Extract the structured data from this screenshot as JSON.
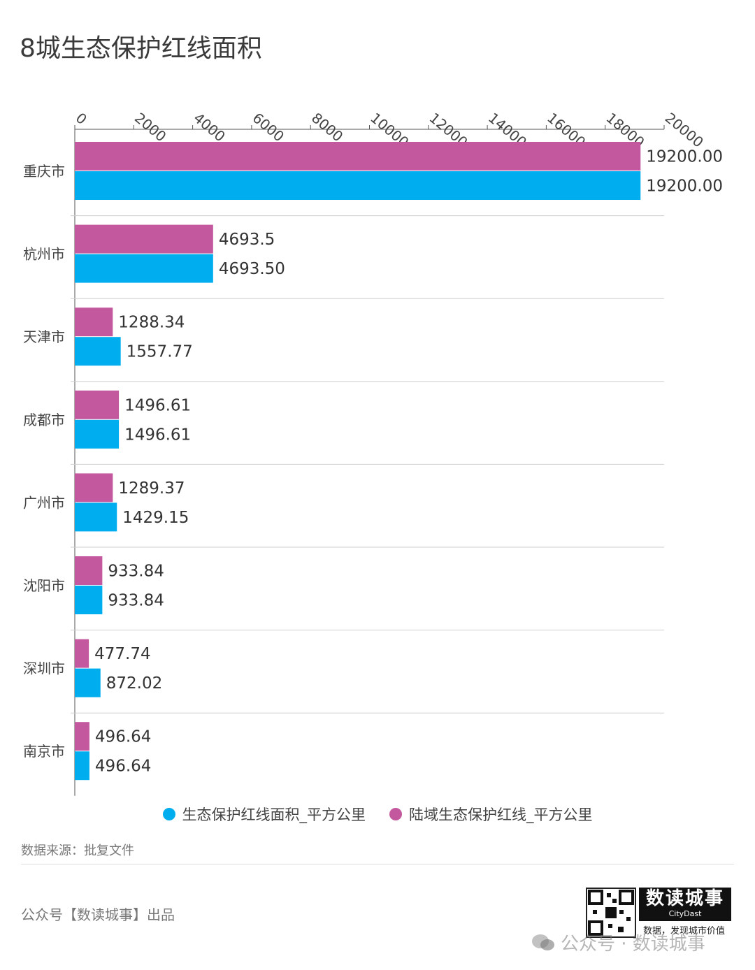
{
  "title": "8城生态保护红线面积",
  "chart_data": {
    "type": "bar",
    "orientation": "horizontal",
    "categories": [
      "重庆市",
      "杭州市",
      "天津市",
      "成都市",
      "广州市",
      "沈阳市",
      "深圳市",
      "南京市"
    ],
    "series": [
      {
        "name": "陆域生态保护红线_平方公里",
        "color": "#c4589e",
        "values": [
          19200.0,
          4693.5,
          1288.34,
          1496.61,
          1289.37,
          933.84,
          477.74,
          496.64
        ],
        "labels": [
          "19200.00",
          "4693.5",
          "1288.34",
          "1496.61",
          "1289.37",
          "933.84",
          "477.74",
          "496.64"
        ]
      },
      {
        "name": "生态保护红线面积_平方公里",
        "color": "#00aeef",
        "values": [
          19200.0,
          4693.5,
          1557.77,
          1496.61,
          1429.15,
          933.84,
          872.02,
          496.64
        ],
        "labels": [
          "19200.00",
          "4693.50",
          "1557.77",
          "1496.61",
          "1429.15",
          "933.84",
          "872.02",
          "496.64"
        ]
      }
    ],
    "xlim": [
      0,
      20000
    ],
    "ticks": [
      0,
      2000,
      4000,
      6000,
      8000,
      10000,
      12000,
      14000,
      16000,
      18000,
      20000
    ],
    "axis_position": "top",
    "grid": "horizontal separators"
  },
  "legend": [
    {
      "label": "生态保护红线面积_平方公里",
      "color": "#00aeef"
    },
    {
      "label": "陆域生态保护红线_平方公里",
      "color": "#c4589e"
    }
  ],
  "source": "数据来源：批复文件",
  "footer": {
    "publisher": "公众号【数读城事】出品",
    "brand": "数读城事",
    "brand_en": "CityDast",
    "slogan": "数据，发现城市价值",
    "watermark": "公众号 · 数读城事"
  }
}
